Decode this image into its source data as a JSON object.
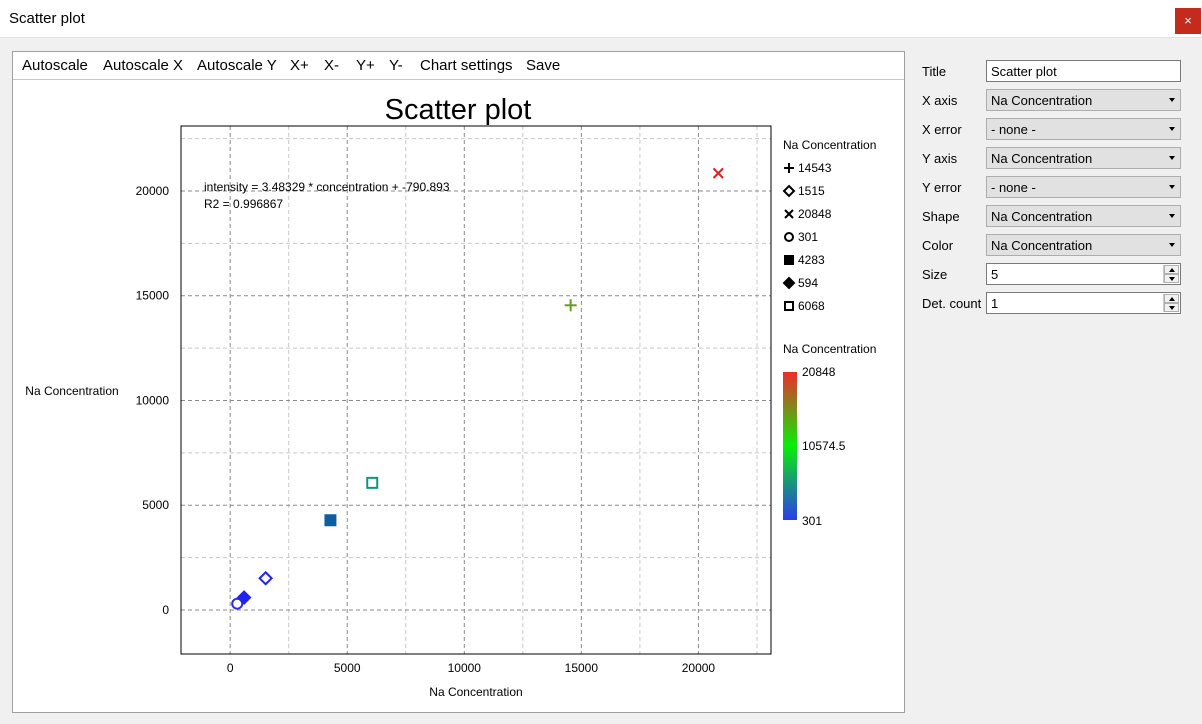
{
  "window": {
    "title": "Scatter plot",
    "close_glyph": "×"
  },
  "toolbar": {
    "items": [
      "Autoscale",
      "Autoscale X",
      "Autoscale Y",
      "X+",
      "X-",
      "Y+",
      "Y-",
      "Chart settings",
      "Save"
    ]
  },
  "chart_data": {
    "type": "scatter",
    "title": "Scatter plot",
    "xlabel": "Na Concentration",
    "ylabel": "Na Concentration",
    "xlim": [
      -2100,
      23100
    ],
    "ylim": [
      -2100,
      23100
    ],
    "xticks": [
      0,
      5000,
      10000,
      15000,
      20000
    ],
    "yticks": [
      0,
      5000,
      10000,
      15000,
      20000
    ],
    "grid": true,
    "points": [
      {
        "x": 14543,
        "y": 14543,
        "shape": "plus",
        "color": "#6a9a1e"
      },
      {
        "x": 1515,
        "y": 1515,
        "shape": "diamond-open",
        "color": "#2323e6"
      },
      {
        "x": 20848,
        "y": 20848,
        "shape": "x",
        "color": "#e02020"
      },
      {
        "x": 301,
        "y": 301,
        "shape": "circle-open",
        "color": "#2d2df0"
      },
      {
        "x": 4283,
        "y": 4283,
        "shape": "square-filled",
        "color": "#0d5fa3"
      },
      {
        "x": 594,
        "y": 594,
        "shape": "diamond-filled",
        "color": "#2222ee"
      },
      {
        "x": 6068,
        "y": 6068,
        "shape": "square-open",
        "color": "#10957a"
      }
    ],
    "fit_annotation": [
      "intensity = 3.48329 * concentration + -790.893",
      "R2 = 0.996867"
    ],
    "legend": {
      "placement": "right",
      "title": "Na Concentration",
      "entries": [
        {
          "shape": "plus",
          "label": "14543"
        },
        {
          "shape": "diamond-open",
          "label": "1515"
        },
        {
          "shape": "x",
          "label": "20848"
        },
        {
          "shape": "circle-open",
          "label": "301"
        },
        {
          "shape": "square-filled",
          "label": "4283"
        },
        {
          "shape": "diamond-filled",
          "label": "594"
        },
        {
          "shape": "square-open",
          "label": "6068"
        }
      ]
    },
    "colorbar": {
      "title": "Na Concentration",
      "max_label": "20848",
      "mid_label": "10574.5",
      "min_label": "301",
      "colors": [
        "#ef2b2b",
        "#08ef08",
        "#2b3bef"
      ]
    }
  },
  "settings": {
    "title_label": "Title",
    "title_value": "Scatter plot",
    "xaxis_label": "X axis",
    "xaxis_value": "Na Concentration",
    "xerror_label": "X error",
    "xerror_value": "- none -",
    "yaxis_label": "Y axis",
    "yaxis_value": "Na Concentration",
    "yerror_label": "Y error",
    "yerror_value": "- none -",
    "shape_label": "Shape",
    "shape_value": "Na Concentration",
    "color_label": "Color",
    "color_value": "Na Concentration",
    "size_label": "Size",
    "size_value": "5",
    "detcount_label": "Det. count",
    "detcount_value": "1"
  }
}
